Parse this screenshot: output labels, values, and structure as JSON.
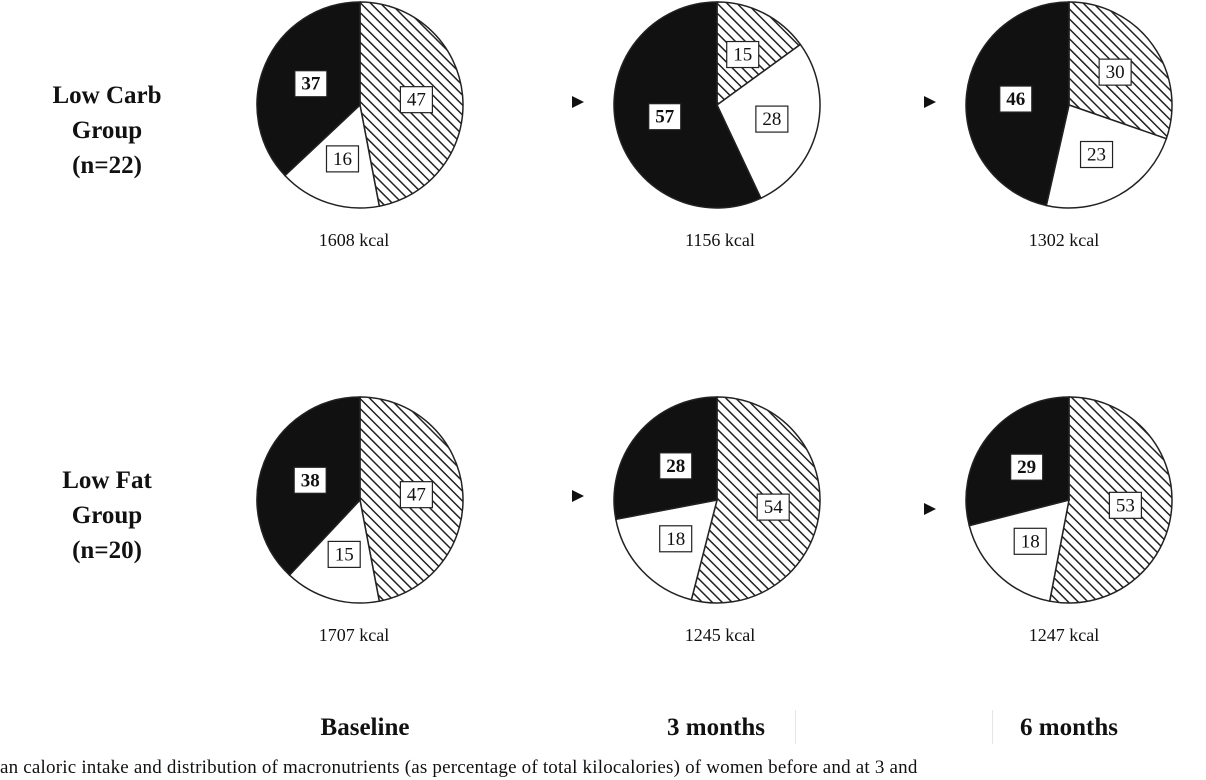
{
  "chart_data": {
    "type": "pie",
    "groups": [
      {
        "label_lines": [
          "Low Carb",
          "Group",
          "(n=22)"
        ],
        "pies": [
          {
            "timepoint": "Baseline",
            "kcal_label": "1608 kcal",
            "slices": [
              {
                "pattern": "hatched",
                "value": 47
              },
              {
                "pattern": "white",
                "value": 16
              },
              {
                "pattern": "black",
                "value": 37
              }
            ]
          },
          {
            "timepoint": "3 months",
            "kcal_label": "1156 kcal",
            "slices": [
              {
                "pattern": "hatched",
                "value": 15
              },
              {
                "pattern": "white",
                "value": 28
              },
              {
                "pattern": "black",
                "value": 57
              }
            ]
          },
          {
            "timepoint": "6 months",
            "kcal_label": "1302 kcal",
            "slices": [
              {
                "pattern": "hatched",
                "value": 30
              },
              {
                "pattern": "white",
                "value": 23
              },
              {
                "pattern": "black",
                "value": 46
              }
            ]
          }
        ]
      },
      {
        "label_lines": [
          "Low Fat",
          "Group",
          "(n=20)"
        ],
        "pies": [
          {
            "timepoint": "Baseline",
            "kcal_label": "1707 kcal",
            "slices": [
              {
                "pattern": "hatched",
                "value": 47
              },
              {
                "pattern": "white",
                "value": 15
              },
              {
                "pattern": "black",
                "value": 38
              }
            ]
          },
          {
            "timepoint": "3 months",
            "kcal_label": "1245 kcal",
            "slices": [
              {
                "pattern": "hatched",
                "value": 54
              },
              {
                "pattern": "white",
                "value": 18
              },
              {
                "pattern": "black",
                "value": 28
              }
            ]
          },
          {
            "timepoint": "6 months",
            "kcal_label": "1247 kcal",
            "slices": [
              {
                "pattern": "hatched",
                "value": 53
              },
              {
                "pattern": "white",
                "value": 18
              },
              {
                "pattern": "black",
                "value": 29
              }
            ]
          }
        ]
      }
    ],
    "timepoints": [
      "Baseline",
      "3 months",
      "6 months"
    ],
    "caption": "an caloric intake and distribution of macronutrients (as percentage of total kilocalories) of women before and at 3 and",
    "colors": {
      "black": "#111111",
      "white": "#ffffff",
      "hatch": "#222222",
      "outline": "#222222"
    }
  }
}
